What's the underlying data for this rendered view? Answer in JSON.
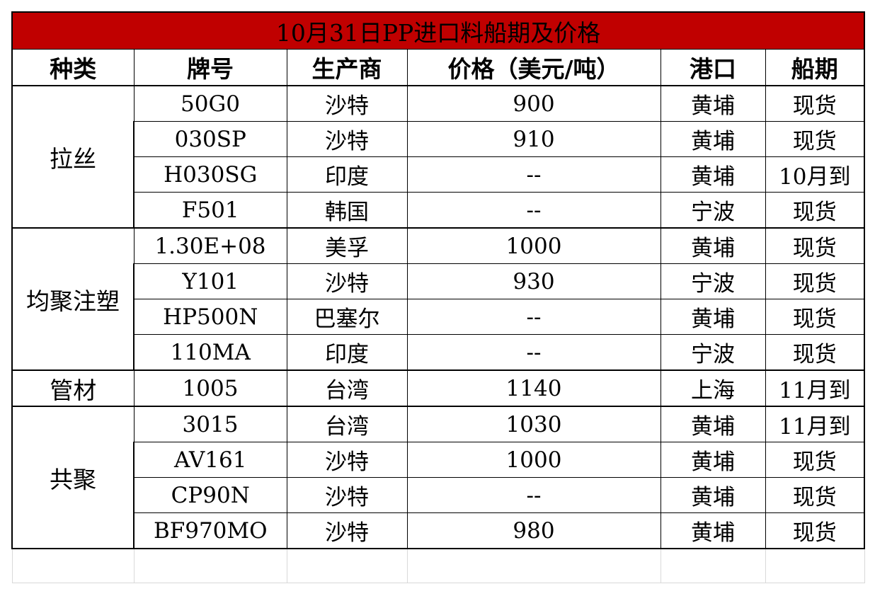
{
  "title": "10月31日PP进口料船期及价格",
  "headers": {
    "category": "种类",
    "grade": "牌号",
    "producer": "生产商",
    "price": "价格（美元/吨）",
    "port": "港口",
    "shipment": "船期"
  },
  "groups": [
    {
      "category": "拉丝",
      "rows": [
        {
          "grade": "50G0",
          "producer": "沙特",
          "price": "900",
          "port": "黄埔",
          "shipment": "现货"
        },
        {
          "grade": "030SP",
          "producer": "沙特",
          "price": "910",
          "port": "黄埔",
          "shipment": "现货"
        },
        {
          "grade": "H030SG",
          "producer": "印度",
          "price": "--",
          "port": "黄埔",
          "shipment": "10月到"
        },
        {
          "grade": "F501",
          "producer": "韩国",
          "price": "--",
          "port": "宁波",
          "shipment": "现货"
        }
      ]
    },
    {
      "category": "均聚注塑",
      "rows": [
        {
          "grade": "1.30E+08",
          "producer": "美孚",
          "price": "1000",
          "port": "黄埔",
          "shipment": "现货"
        },
        {
          "grade": "Y101",
          "producer": "沙特",
          "price": "930",
          "port": "宁波",
          "shipment": "现货"
        },
        {
          "grade": "HP500N",
          "producer": "巴塞尔",
          "price": "--",
          "port": "黄埔",
          "shipment": "现货"
        },
        {
          "grade": "110MA",
          "producer": "印度",
          "price": "--",
          "port": "宁波",
          "shipment": "现货"
        }
      ]
    },
    {
      "category": "管材",
      "rows": [
        {
          "grade": "1005",
          "producer": "台湾",
          "price": "1140",
          "port": "上海",
          "shipment": "11月到"
        }
      ]
    },
    {
      "category": "共聚",
      "rows": [
        {
          "grade": "3015",
          "producer": "台湾",
          "price": "1030",
          "port": "黄埔",
          "shipment": "11月到"
        },
        {
          "grade": "AV161",
          "producer": "沙特",
          "price": "1000",
          "port": "黄埔",
          "shipment": "现货"
        },
        {
          "grade": "CP90N",
          "producer": "沙特",
          "price": "--",
          "port": "黄埔",
          "shipment": "现货"
        },
        {
          "grade": "BF970MO",
          "producer": "沙特",
          "price": "980",
          "port": "黄埔",
          "shipment": "现货"
        }
      ]
    }
  ],
  "colors": {
    "title_background": "#c00000",
    "title_text": "#ffffff"
  }
}
